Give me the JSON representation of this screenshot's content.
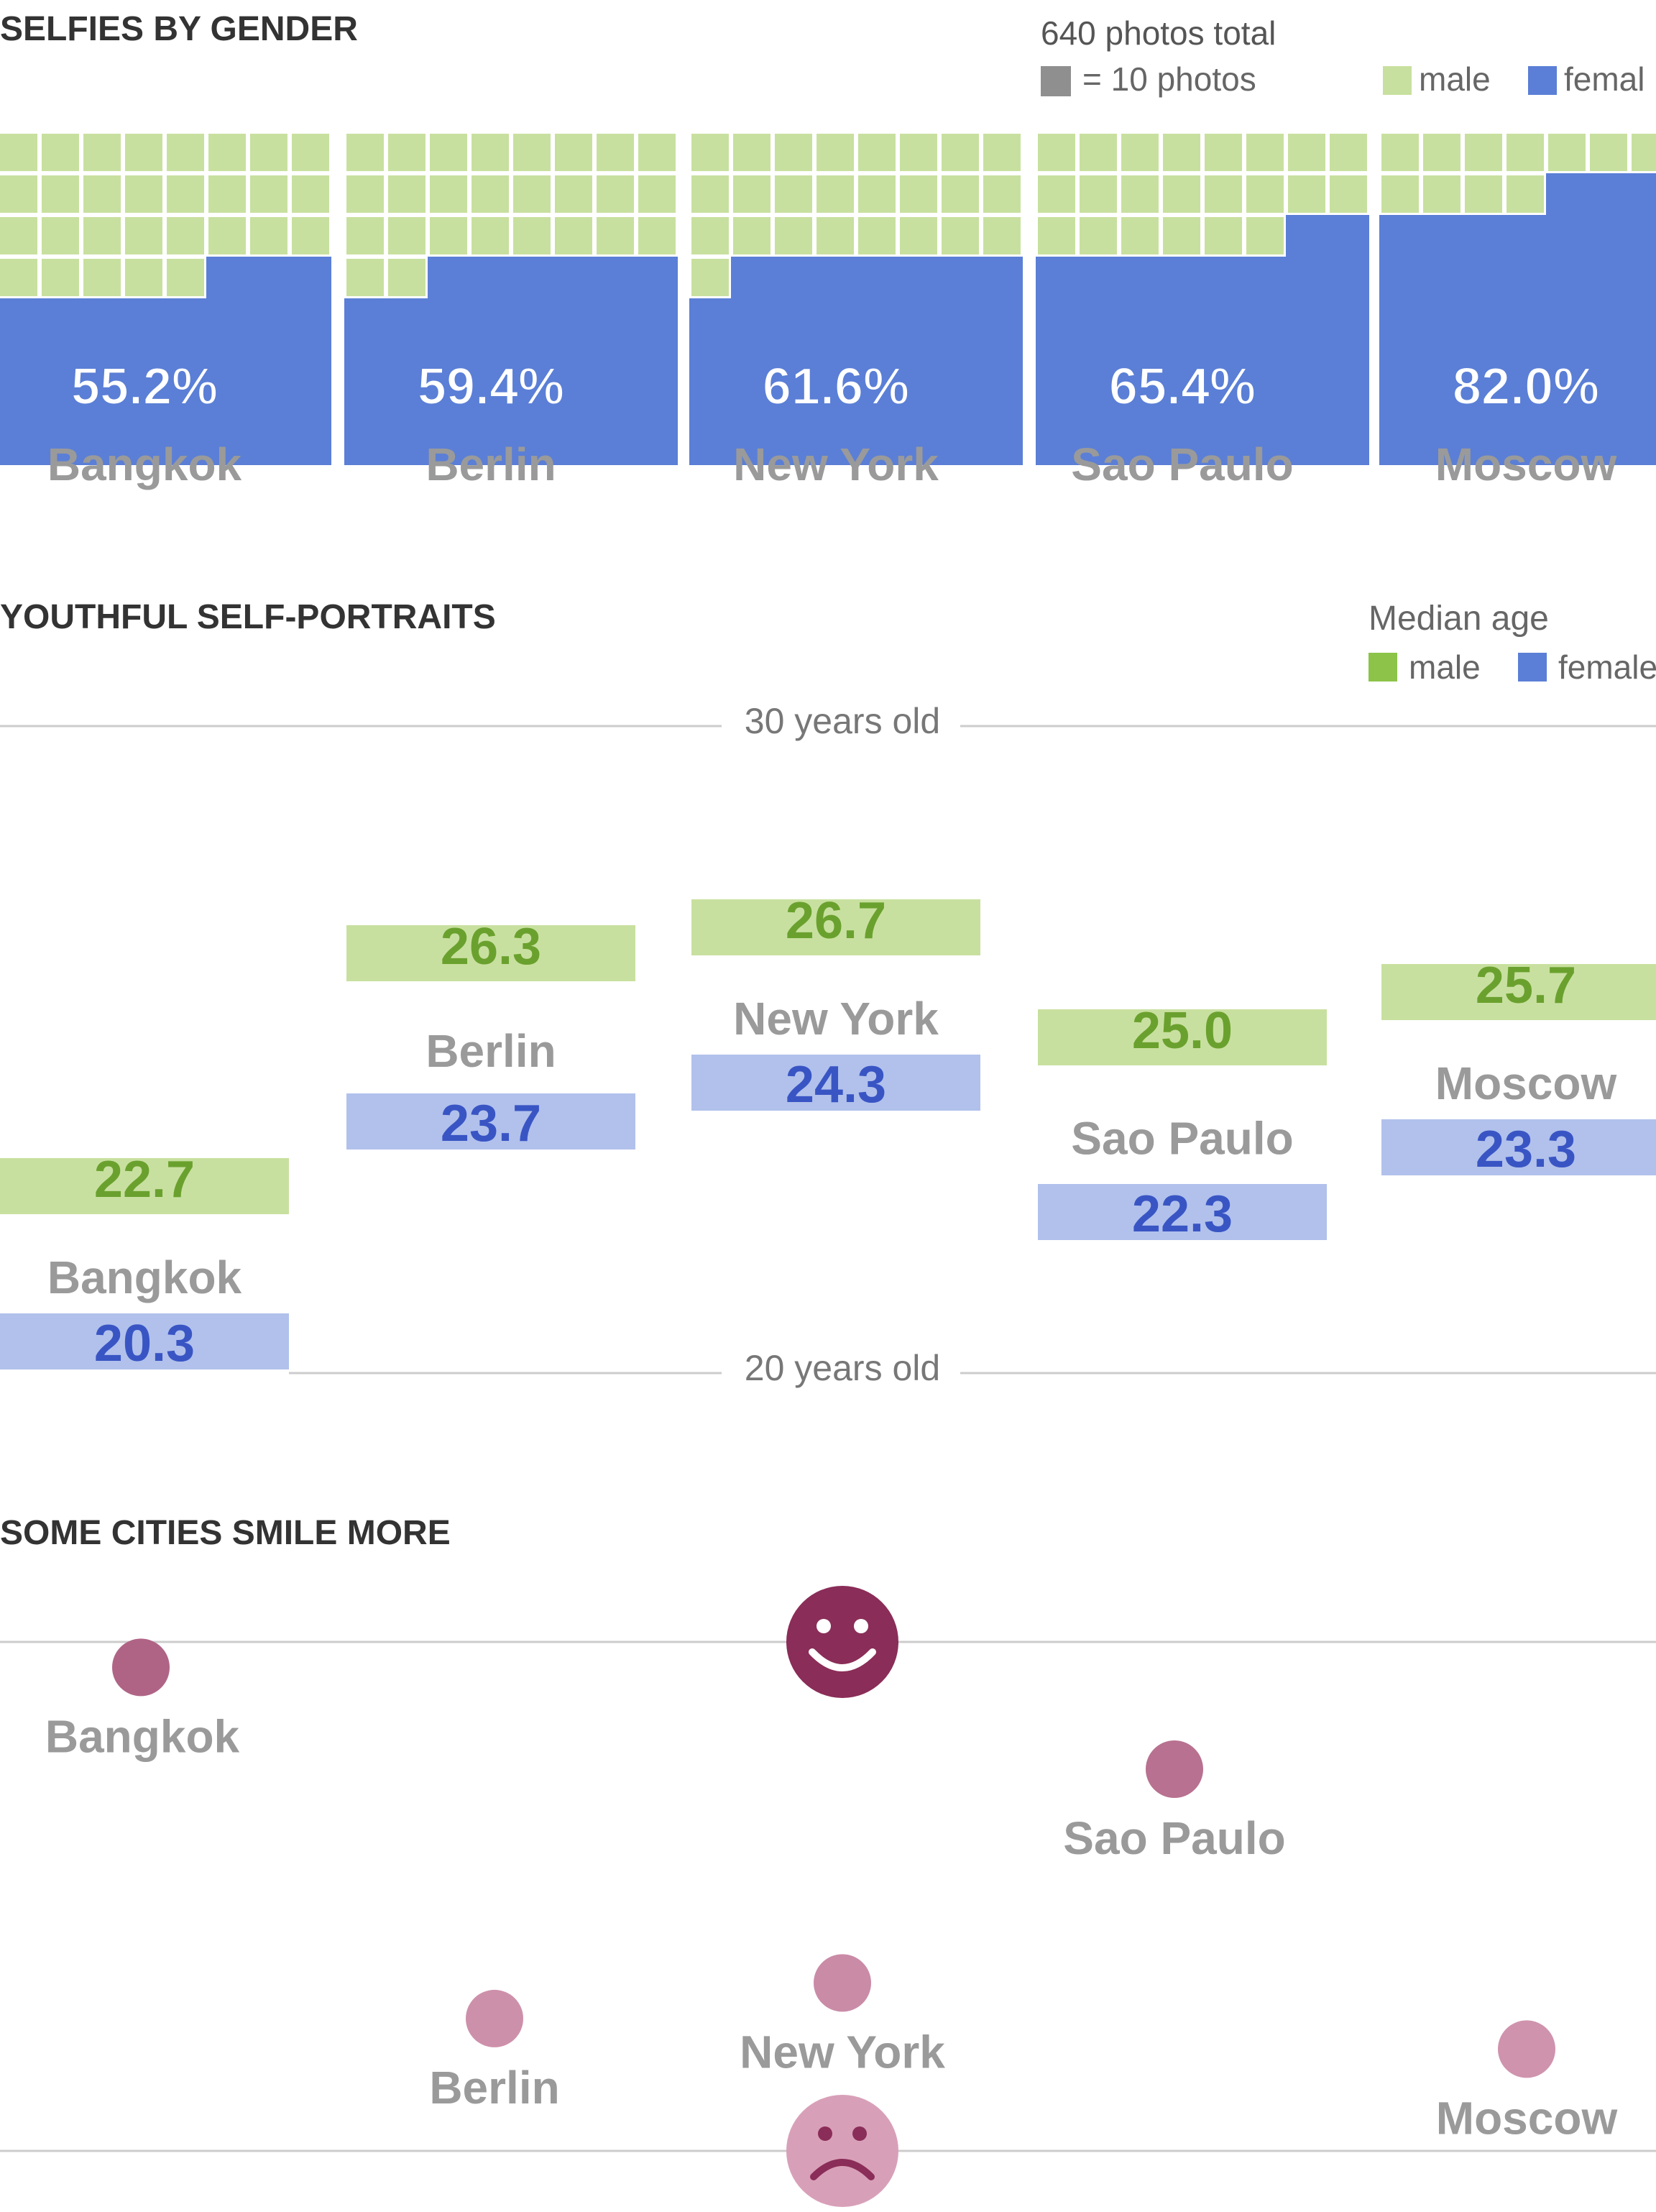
{
  "colors": {
    "male_waffle": "#c8e09f",
    "female_waffle": "#5b7fd6",
    "male_age_box": "#c8e09f",
    "male_age_text": "#6aa12e",
    "female_age_box": "#b1c1ec",
    "female_age_text": "#3955c4",
    "legend_male": "#8cc348",
    "legend_female": "#5b7fd6",
    "city_label": "#9a9a9a",
    "title": "#333333",
    "smile_dot_dark": "#8a2d58",
    "smile_dot_light": "#d8a0b8",
    "rule": "#cccccc"
  },
  "icons": {
    "happy": "smiley-face-icon",
    "sad": "frowning-face-icon"
  },
  "chart_data": [
    {
      "type": "waffle",
      "title": "SELFIES BY GENDER",
      "total_note": "640 photos total",
      "unit_note": "= 10 photos",
      "legend": [
        "male",
        "femal"
      ],
      "categories": [
        "Bangkok",
        "Berlin",
        "New York",
        "Sao Paulo",
        "Moscow"
      ],
      "female_share_labels": [
        "55.2%",
        "59.4%",
        "61.6%",
        "65.4%",
        "82.0%"
      ],
      "female_share": [
        55.2,
        59.4,
        61.6,
        65.4,
        82.0
      ],
      "grid": {
        "cols": 8,
        "rows": 8
      }
    },
    {
      "type": "range",
      "title": "YOUTHFUL SELF-PORTRAITS",
      "legend_title": "Median age",
      "legend": [
        "male",
        "female"
      ],
      "ylim": [
        20,
        30
      ],
      "reference_labels": {
        "top": "30 years old",
        "bottom": "20 years old"
      },
      "categories": [
        "Bangkok",
        "Berlin",
        "New York",
        "Sao Paulo",
        "Moscow"
      ],
      "series": [
        {
          "name": "male",
          "values": [
            22.7,
            26.3,
            26.7,
            25.0,
            25.7
          ],
          "labels": [
            "22.7",
            "26.3",
            "26.7",
            "25.0",
            "25.7"
          ]
        },
        {
          "name": "female",
          "values": [
            20.3,
            23.7,
            24.3,
            22.3,
            23.3
          ],
          "labels": [
            "20.3",
            "23.7",
            "24.3",
            "22.3",
            "23.3"
          ]
        }
      ]
    },
    {
      "type": "scatter",
      "title": "SOME CITIES SMILE MORE",
      "categories": [
        "Bangkok",
        "Berlin",
        "New York",
        "Sao Paulo",
        "Moscow"
      ],
      "smile_scale": [
        0.95,
        0.26,
        0.33,
        0.75,
        0.2
      ],
      "label_position": [
        "below",
        "below",
        "below",
        "below",
        "below"
      ]
    }
  ]
}
